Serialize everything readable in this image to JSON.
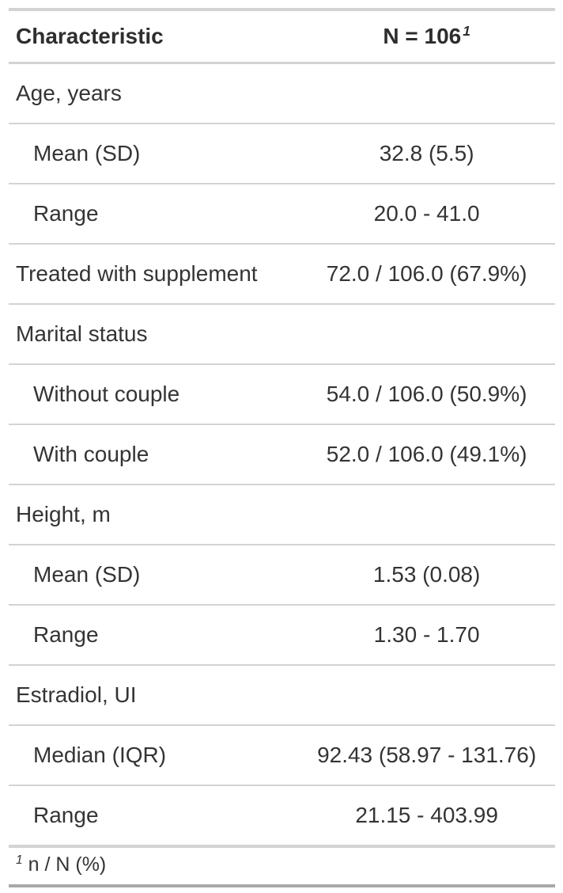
{
  "chart_data": {
    "type": "table",
    "columns": [
      {
        "label": "Characteristic",
        "footnote_marker": ""
      },
      {
        "label": "N = 106",
        "footnote_marker": "1"
      }
    ],
    "rows": [
      {
        "label": "Age, years",
        "value": "",
        "indent": false
      },
      {
        "label": "Mean (SD)",
        "value": "32.8 (5.5)",
        "indent": true
      },
      {
        "label": "Range",
        "value": "20.0 - 41.0",
        "indent": true
      },
      {
        "label": "Treated with supplement",
        "value": "72.0 / 106.0 (67.9%)",
        "indent": false
      },
      {
        "label": "Marital status",
        "value": "",
        "indent": false
      },
      {
        "label": "Without couple",
        "value": "54.0 / 106.0 (50.9%)",
        "indent": true
      },
      {
        "label": "With couple",
        "value": "52.0 / 106.0 (49.1%)",
        "indent": true
      },
      {
        "label": "Height, m",
        "value": "",
        "indent": false
      },
      {
        "label": "Mean (SD)",
        "value": "1.53 (0.08)",
        "indent": true
      },
      {
        "label": "Range",
        "value": "1.30 - 1.70",
        "indent": true
      },
      {
        "label": "Estradiol, UI",
        "value": "",
        "indent": false
      },
      {
        "label": "Median (IQR)",
        "value": "92.43 (58.97 - 131.76)",
        "indent": true
      },
      {
        "label": "Range",
        "value": "21.15 - 403.99",
        "indent": true
      }
    ],
    "footnote": {
      "marker": "1",
      "text": "n / N (%)"
    }
  },
  "colors": {
    "background": "#FFFFFF",
    "text": "#343434",
    "header_text": "#2E2E2E",
    "border_light": "#D3D3D3",
    "border_dark": "#A8A8A8"
  }
}
